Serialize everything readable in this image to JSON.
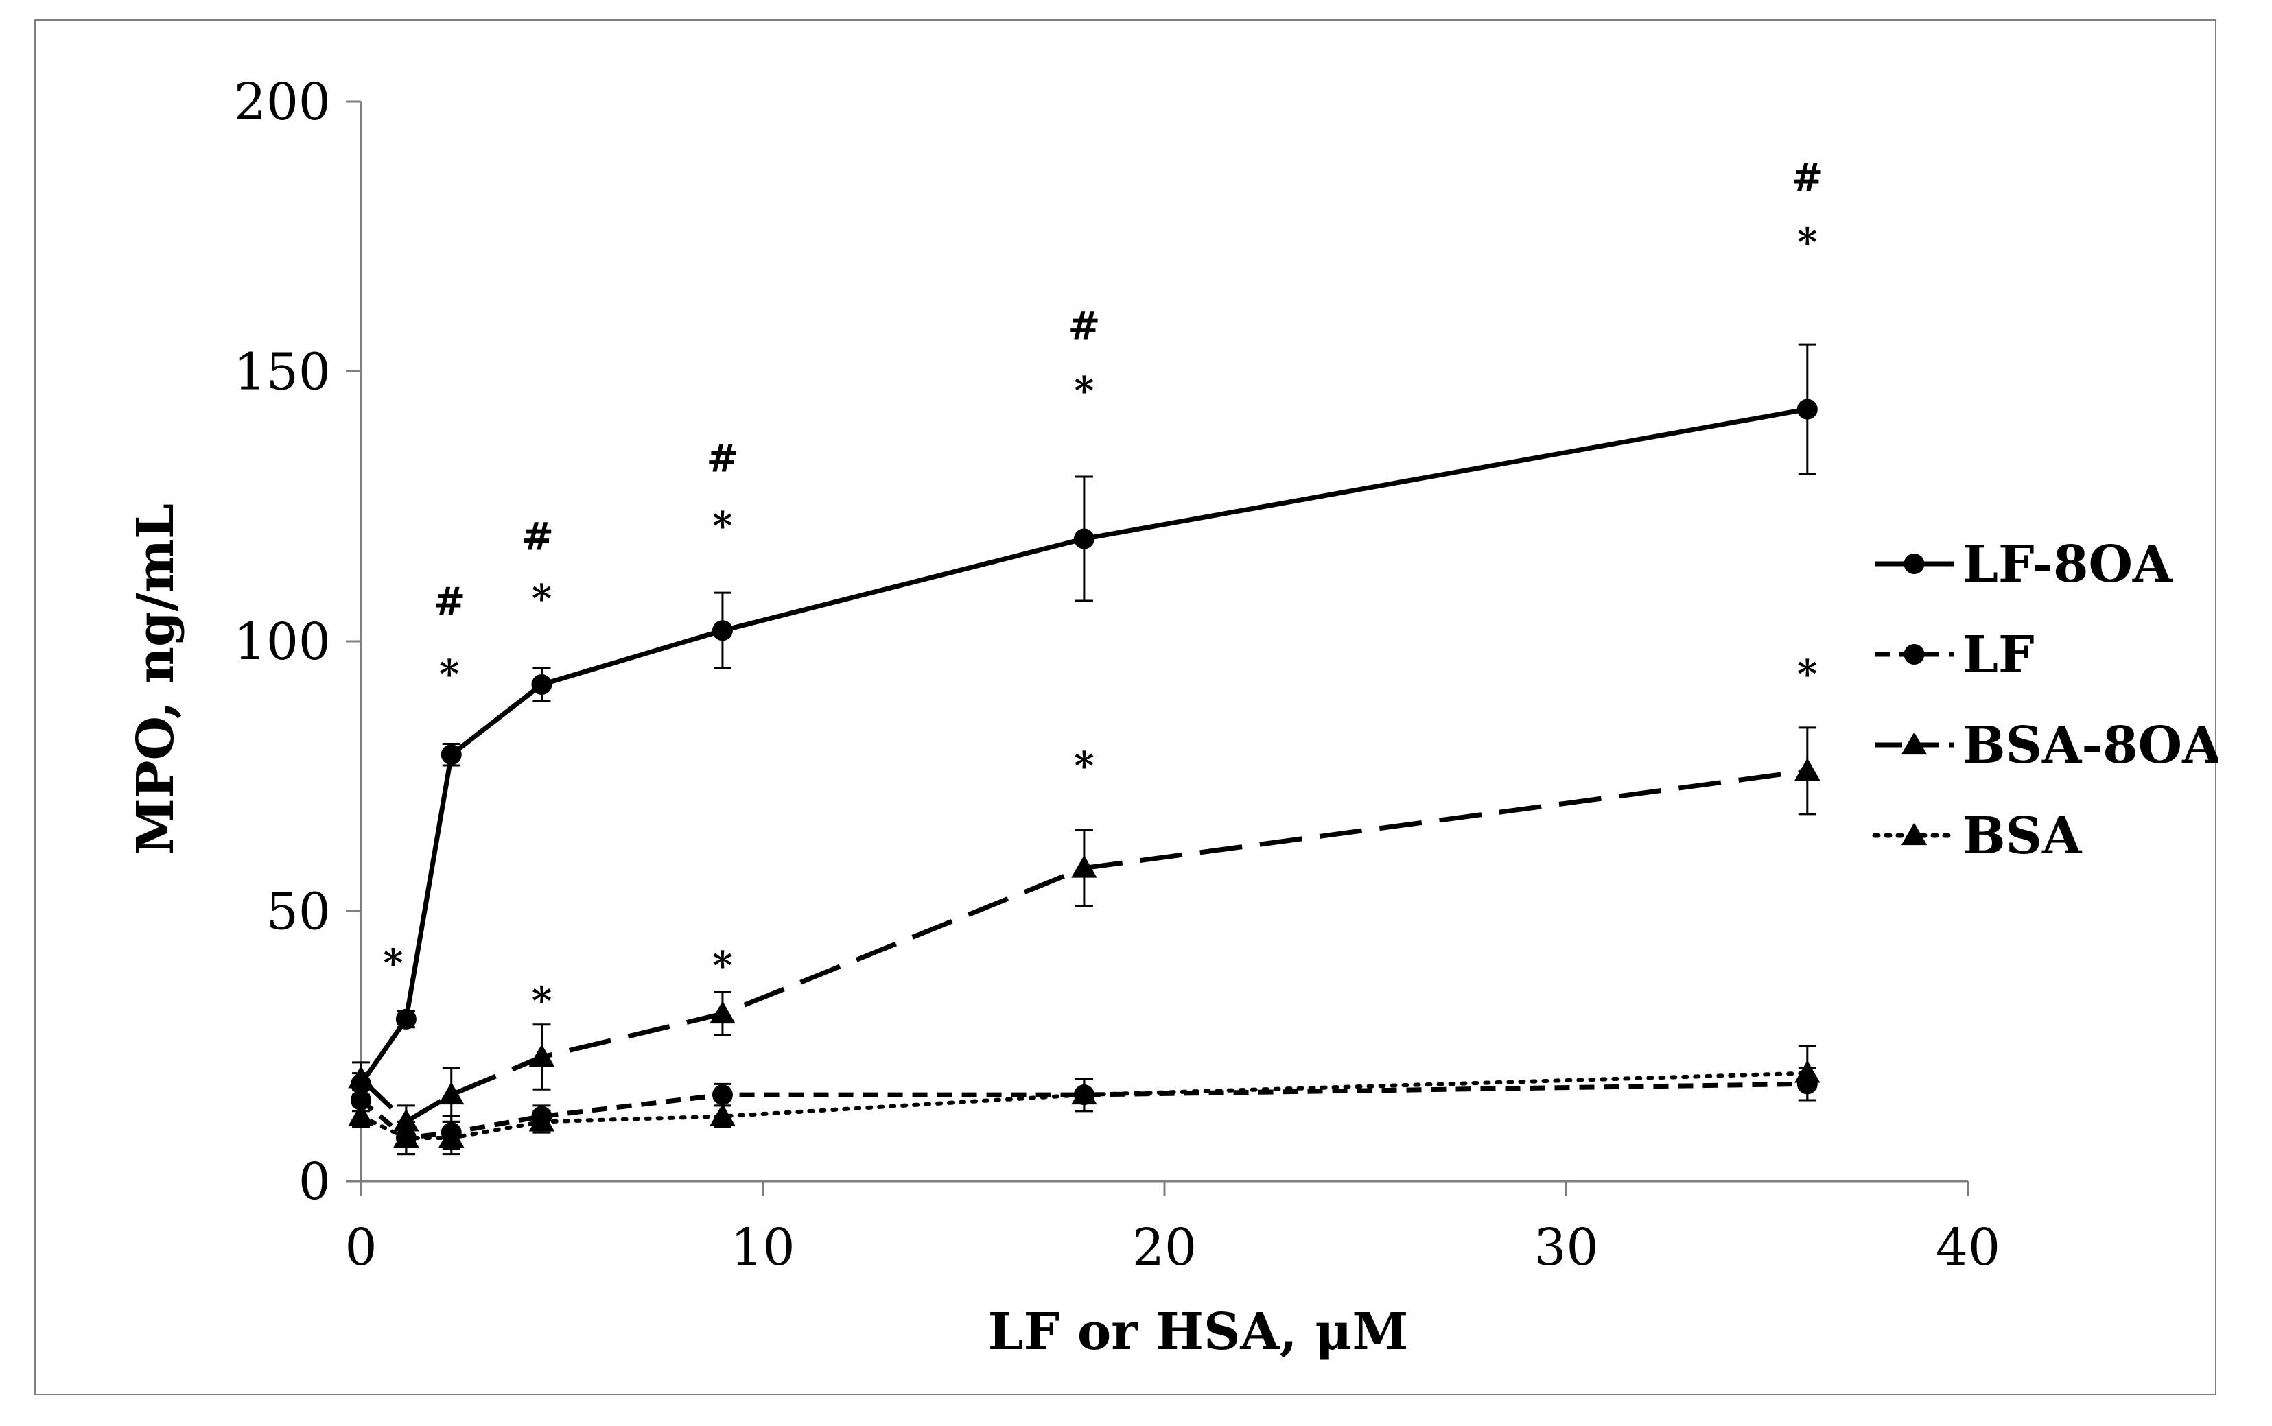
{
  "chart_data": {
    "type": "line",
    "xlabel": "LF or HSA, μM",
    "ylabel": "MPO, ng/mL",
    "xlim": [
      0,
      40
    ],
    "ylim": [
      0,
      200
    ],
    "x_ticks": [
      "0",
      "10",
      "20",
      "30",
      "40"
    ],
    "y_ticks": [
      "0",
      "50",
      "100",
      "150",
      "200"
    ],
    "grid": false,
    "legend_position": "right",
    "series": [
      {
        "name": "LF-8OA",
        "line_style": "solid",
        "marker": "circle",
        "x": [
          0,
          1.125,
          2.25,
          4.5,
          9,
          18,
          36
        ],
        "y": [
          18,
          30,
          79,
          92,
          102,
          119,
          143
        ],
        "error": [
          2,
          1.5,
          2,
          3,
          7,
          11.5,
          12
        ]
      },
      {
        "name": "LF",
        "line_style": "short-dash",
        "marker": "circle",
        "x": [
          0,
          1.125,
          2.25,
          4.5,
          9,
          18,
          36
        ],
        "y": [
          15,
          8,
          9,
          12,
          16,
          16,
          18
        ],
        "error": [
          2,
          3,
          3,
          2,
          2,
          3,
          3
        ]
      },
      {
        "name": "BSA-8OA",
        "line_style": "long-dash",
        "marker": "triangle",
        "x": [
          0,
          1.125,
          2.25,
          4.5,
          9,
          18,
          36
        ],
        "y": [
          19,
          11,
          16,
          23,
          31,
          58,
          76
        ],
        "error": [
          3,
          3,
          5,
          6,
          4,
          7,
          8
        ]
      },
      {
        "name": "BSA",
        "line_style": "dotted",
        "marker": "triangle",
        "x": [
          0,
          1.125,
          2.25,
          4.5,
          9,
          18,
          36
        ],
        "y": [
          12,
          8,
          8,
          11,
          12,
          16,
          20
        ],
        "error": [
          2,
          3,
          3,
          2,
          2,
          3,
          5
        ]
      }
    ],
    "annotations": [
      {
        "x": 0.8,
        "y": 40.5,
        "text": "*"
      },
      {
        "x": 2.2,
        "y": 107.5,
        "text": "#"
      },
      {
        "x": 2.2,
        "y": 94,
        "text": "*"
      },
      {
        "x": 4.4,
        "y": 119.5,
        "text": "#"
      },
      {
        "x": 4.5,
        "y": 108,
        "text": "*"
      },
      {
        "x": 9,
        "y": 134,
        "text": "#"
      },
      {
        "x": 9,
        "y": 121.5,
        "text": "*"
      },
      {
        "x": 18,
        "y": 158.5,
        "text": "#"
      },
      {
        "x": 18,
        "y": 146.5,
        "text": "*"
      },
      {
        "x": 36,
        "y": 186,
        "text": "#"
      },
      {
        "x": 36,
        "y": 174,
        "text": "*"
      },
      {
        "x": 4.5,
        "y": 33.5,
        "text": "*"
      },
      {
        "x": 9,
        "y": 40,
        "text": "*"
      },
      {
        "x": 18,
        "y": 77,
        "text": "*"
      },
      {
        "x": 36,
        "y": 94,
        "text": "*"
      }
    ]
  }
}
